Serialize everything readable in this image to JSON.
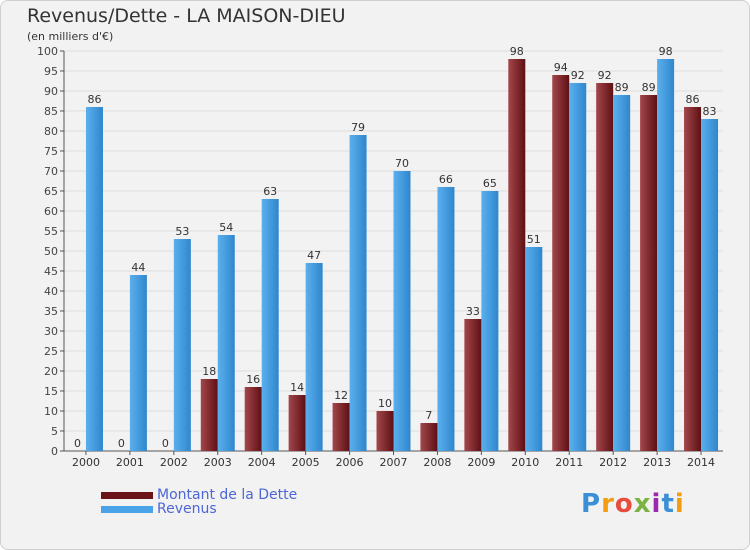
{
  "title": "Revenus/Dette - LA MAISON-DIEU",
  "subtitle": "(en milliers d'€)",
  "logo_text": "Proxiti",
  "colors": {
    "dette": "#7a1f24",
    "revenus": "#4aa3e6",
    "background": "#f2f2f2",
    "grid": "#dddddd",
    "axis": "#555555"
  },
  "chart_data": {
    "type": "bar",
    "title": "Revenus/Dette - LA MAISON-DIEU",
    "subtitle": "(en milliers d'€)",
    "ylim": [
      0,
      100
    ],
    "ytick_step": 5,
    "grid": true,
    "legend_position": "bottom-left",
    "categories": [
      "2000",
      "2001",
      "2002",
      "2003",
      "2004",
      "2005",
      "2006",
      "2007",
      "2008",
      "2009",
      "2010",
      "2011",
      "2012",
      "2013",
      "2014"
    ],
    "series": [
      {
        "name": "Montant de la Dette",
        "color": "#7a1f24",
        "values": [
          0,
          0,
          0,
          18,
          16,
          14,
          12,
          10,
          7,
          33,
          98,
          94,
          92,
          89,
          86
        ]
      },
      {
        "name": "Revenus",
        "color": "#4aa3e6",
        "values": [
          86,
          44,
          53,
          54,
          63,
          47,
          79,
          70,
          66,
          65,
          51,
          92,
          89,
          98,
          83
        ]
      }
    ]
  }
}
